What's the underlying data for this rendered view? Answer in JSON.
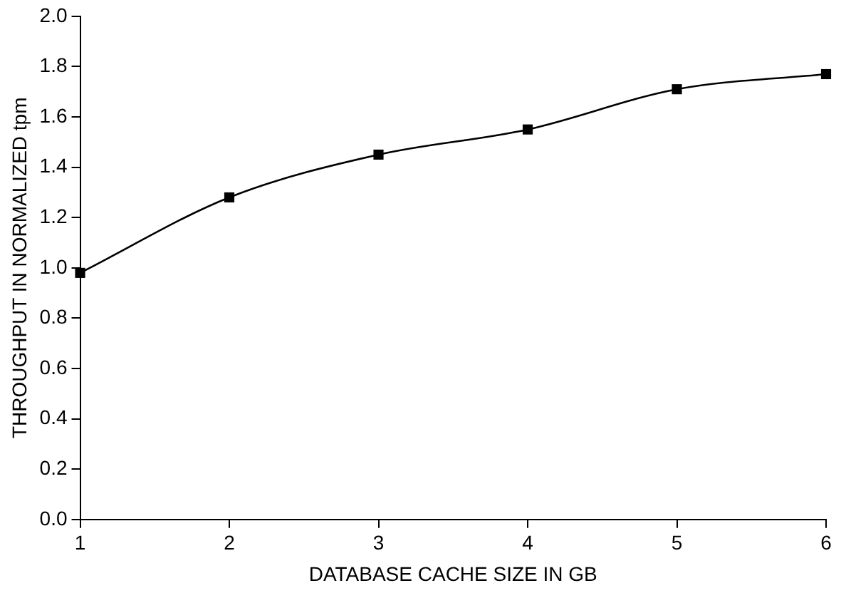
{
  "chart_data": {
    "type": "line",
    "xlabel": "DATABASE CACHE SIZE IN GB",
    "ylabel": "THROUGHPUT IN NORMALIZED tpm",
    "x": [
      1,
      2,
      3,
      4,
      5,
      6
    ],
    "series": [
      {
        "color": "#000000",
        "values": [
          0.98,
          1.28,
          1.45,
          1.55,
          1.71,
          1.77
        ]
      }
    ],
    "xlim": [
      1,
      6
    ],
    "xticks": [
      1,
      2,
      3,
      4,
      5,
      6
    ],
    "ylim": [
      0,
      2
    ],
    "yticks": [
      {
        "value": 0,
        "label": "0.0"
      },
      {
        "value": 0.2,
        "label": "0.2"
      },
      {
        "value": 0.4,
        "label": "0.4"
      },
      {
        "value": 0.6,
        "label": "0.6"
      },
      {
        "value": 0.8,
        "label": "0.8"
      },
      {
        "value": 1,
        "label": "1.0"
      },
      {
        "value": 1.2,
        "label": "1.2"
      },
      {
        "value": 1.4,
        "label": "1.4"
      },
      {
        "value": 1.6,
        "label": "1.6"
      },
      {
        "value": 1.8,
        "label": "1.8"
      },
      {
        "value": 2,
        "label": "2.0"
      }
    ],
    "grid": false,
    "legend": false,
    "marker": "square",
    "line_style": "solid"
  }
}
